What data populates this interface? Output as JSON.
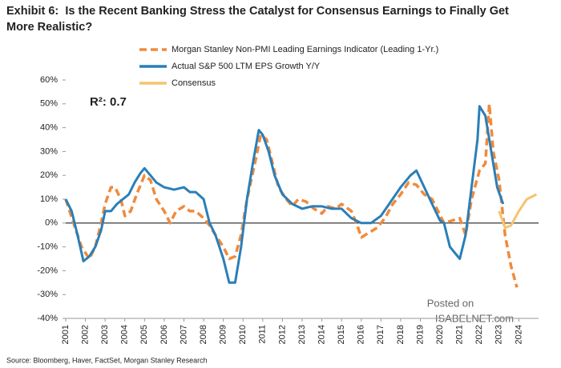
{
  "chart_data": {
    "type": "line",
    "exhibit": "Exhibit 6:",
    "title": "Is the Recent Banking Stress the Catalyst for Consensus Earnings to Finally Get More Realistic?",
    "annotation": "R²: 0.7",
    "source": "Source: Bloomberg, Haver, FactSet, Morgan Stanley Research",
    "watermark": [
      "Posted on",
      "ISABELNET.com"
    ],
    "xlim": [
      2001,
      2025
    ],
    "xticks": [
      2001,
      2002,
      2003,
      2004,
      2005,
      2006,
      2007,
      2008,
      2009,
      2010,
      2011,
      2012,
      2013,
      2014,
      2015,
      2016,
      2017,
      2018,
      2019,
      2020,
      2021,
      2022,
      2023,
      2024
    ],
    "ylim": [
      -40,
      60
    ],
    "yticks": [
      {
        "value": -40,
        "label": "-40%"
      },
      {
        "value": -30,
        "label": "-30%"
      },
      {
        "value": -20,
        "label": "-20%"
      },
      {
        "value": -10,
        "label": "-10%"
      },
      {
        "value": 0,
        "label": "0%"
      },
      {
        "value": 10,
        "label": "10%"
      },
      {
        "value": 20,
        "label": "20%"
      },
      {
        "value": 30,
        "label": "30%"
      },
      {
        "value": 40,
        "label": "40%"
      },
      {
        "value": 50,
        "label": "50%"
      },
      {
        "value": 60,
        "label": "60%"
      }
    ],
    "series": [
      {
        "name": "Morgan Stanley Non-PMI Leading Earnings Indicator (Leading 1-Yr.)",
        "color": "#f08a3c",
        "dashed": true,
        "x": [
          2001,
          2001.4,
          2001.8,
          2002.2,
          2002.5,
          2002.8,
          2003.0,
          2003.3,
          2003.5,
          2003.8,
          2004.0,
          2004.3,
          2004.6,
          2005.0,
          2005.3,
          2005.6,
          2006.0,
          2006.3,
          2006.6,
          2007.0,
          2007.3,
          2007.6,
          2008.0,
          2008.3,
          2008.6,
          2009.0,
          2009.3,
          2009.6,
          2009.9,
          2010.2,
          2010.6,
          2010.9,
          2011.2,
          2011.5,
          2011.8,
          2012.2,
          2012.5,
          2012.8,
          2013.2,
          2013.6,
          2014.0,
          2014.3,
          2014.7,
          2015.0,
          2015.5,
          2015.8,
          2016.0,
          2016.4,
          2016.8,
          2017.2,
          2017.6,
          2018.0,
          2018.4,
          2018.8,
          2019.2,
          2019.6,
          2019.9,
          2020.2,
          2020.6,
          2021.0,
          2021.3,
          2021.6,
          2022.0,
          2022.3,
          2022.5,
          2022.7,
          2023.0,
          2023.3,
          2023.6,
          2023.9
        ],
        "values": [
          10,
          0,
          -10,
          -15,
          -10,
          0,
          8,
          15,
          15,
          10,
          3,
          5,
          12,
          20,
          18,
          10,
          5,
          0,
          5,
          7,
          5,
          5,
          2,
          -1,
          -5,
          -10,
          -15,
          -14,
          -5,
          10,
          25,
          37,
          35,
          25,
          15,
          10,
          7,
          10,
          9,
          6,
          4,
          7,
          6,
          8,
          5,
          -1,
          -6,
          -4,
          -2,
          2,
          8,
          12,
          17,
          16,
          12,
          10,
          5,
          0,
          1,
          2,
          -5,
          10,
          22,
          25,
          50,
          30,
          18,
          -5,
          -18,
          -27
        ]
      },
      {
        "name": "Actual S&P 500 LTM EPS Growth Y/Y",
        "color": "#2a7fb8",
        "dashed": false,
        "x": [
          2001,
          2001.3,
          2001.6,
          2001.9,
          2002.2,
          2002.5,
          2002.8,
          2003.0,
          2003.3,
          2003.6,
          2003.9,
          2004.2,
          2004.5,
          2004.8,
          2005.0,
          2005.3,
          2005.6,
          2006.0,
          2006.5,
          2007.0,
          2007.3,
          2007.6,
          2008.0,
          2008.3,
          2008.6,
          2009.0,
          2009.3,
          2009.6,
          2009.9,
          2010.2,
          2010.5,
          2010.8,
          2011.0,
          2011.3,
          2011.6,
          2012.0,
          2012.5,
          2013.0,
          2013.5,
          2014.0,
          2014.5,
          2015.0,
          2015.5,
          2016.0,
          2016.5,
          2017.0,
          2017.5,
          2018.0,
          2018.5,
          2018.8,
          2019.2,
          2019.6,
          2020.0,
          2020.2,
          2020.5,
          2020.8,
          2021.0,
          2021.3,
          2021.6,
          2021.9,
          2022.0,
          2022.3,
          2022.6,
          2022.9,
          2023.2
        ],
        "values": [
          10,
          5,
          -5,
          -16,
          -14,
          -10,
          -3,
          5,
          5,
          8,
          10,
          12,
          17,
          21,
          23,
          20,
          17,
          15,
          14,
          15,
          13,
          13,
          10,
          0,
          -5,
          -15,
          -25,
          -25,
          -10,
          10,
          25,
          39,
          37,
          30,
          20,
          12,
          8,
          6,
          7,
          7,
          6,
          6,
          2,
          0,
          0,
          3,
          9,
          15,
          20,
          22,
          15,
          8,
          1,
          0,
          -10,
          -13,
          -15,
          -5,
          15,
          35,
          49,
          45,
          30,
          15,
          8
        ]
      },
      {
        "name": "Consensus",
        "color": "#f5c46e",
        "dashed": false,
        "x": [
          2023.0,
          2023.3,
          2023.6,
          2024.0,
          2024.4,
          2024.9
        ],
        "values": [
          5,
          -2,
          -1,
          5,
          10,
          12
        ]
      }
    ]
  }
}
